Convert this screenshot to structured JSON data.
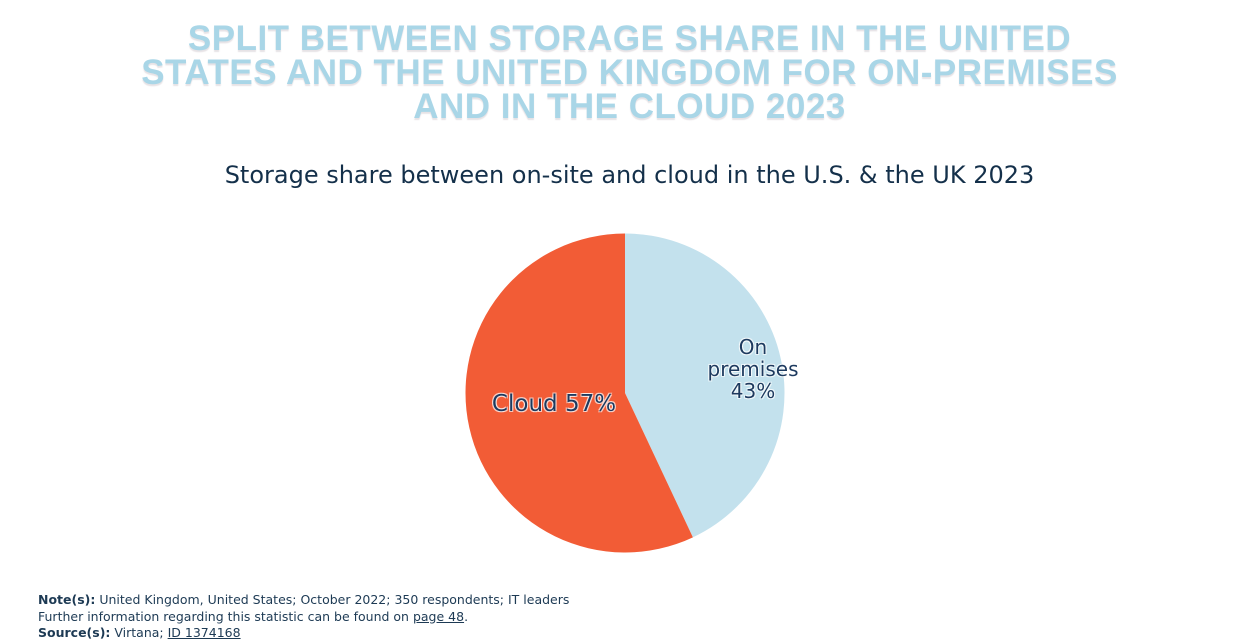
{
  "page": {
    "title": "SPLIT BETWEEN STORAGE SHARE IN THE UNITED STATES AND THE UNITED KINGDOM FOR ON-PREMISES AND IN THE CLOUD 2023",
    "title_lines": [
      "SPLIT BETWEEN STORAGE SHARE IN THE UNITED",
      "STATES AND THE UNITED KINGDOM FOR ON-PREMISES",
      "AND IN THE CLOUD 2023"
    ],
    "subtitle": "Storage share between on-site and cloud in the U.S. & the UK 2023"
  },
  "chart_data": {
    "type": "pie",
    "title": "Storage share between on-site and cloud in the U.S. & the UK 2023",
    "categories": [
      "On premises",
      "Cloud"
    ],
    "values": [
      43,
      57
    ],
    "unit": "%",
    "colors": [
      "#c3e1ed",
      "#f25c36"
    ],
    "start_angle_deg": 0,
    "direction": "clockwise",
    "legend_position": "none",
    "labels": [
      {
        "category": "On premises",
        "lines": [
          "On",
          "premises",
          "43%"
        ]
      },
      {
        "category": "Cloud",
        "lines": [
          "Cloud 57%"
        ]
      }
    ]
  },
  "notes": {
    "note_label": "Note(s):",
    "note_text": " United Kingdom, United States; October 2022; 350 respondents; IT leaders",
    "further_text_before": "Further information regarding this statistic can be found on ",
    "further_link": "page 48",
    "further_text_after": ".",
    "source_label": "Source(s):",
    "source_text_before": " Virtana; ",
    "source_link": "ID 1374168"
  },
  "colors": {
    "title_blue": "#a9d6e7",
    "navy_text": "#17375e",
    "slice_on_premises": "#c3e1ed",
    "slice_cloud": "#f25c36",
    "background": "#ffffff"
  }
}
